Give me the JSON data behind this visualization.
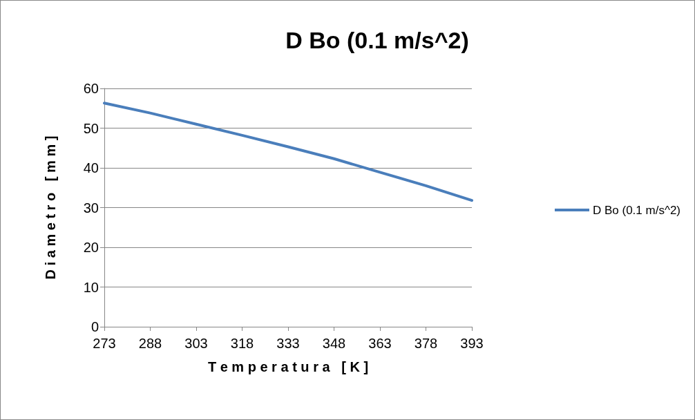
{
  "chart_data": {
    "type": "line",
    "title": "D Bo (0.1 m/s^2)",
    "xlabel": "T e m p e r a t u r a   [ K ]",
    "ylabel": "D i a m e t r o   [ m m ]",
    "x": [
      273,
      288,
      303,
      318,
      333,
      348,
      363,
      378,
      393
    ],
    "series": [
      {
        "name": "D Bo (0.1 m/s^2)",
        "color": "#4a7ebb",
        "values": [
          56.3,
          53.8,
          51.0,
          48.2,
          45.3,
          42.3,
          38.9,
          35.5,
          31.8
        ]
      }
    ],
    "xlim": [
      273,
      393
    ],
    "xticks": [
      273,
      288,
      303,
      318,
      333,
      348,
      363,
      378,
      393
    ],
    "ylim": [
      0,
      60
    ],
    "yticks": [
      0,
      10,
      20,
      30,
      40,
      50,
      60
    ],
    "grid": "y",
    "legend": "right",
    "marker": "none",
    "line_style": "solid"
  }
}
